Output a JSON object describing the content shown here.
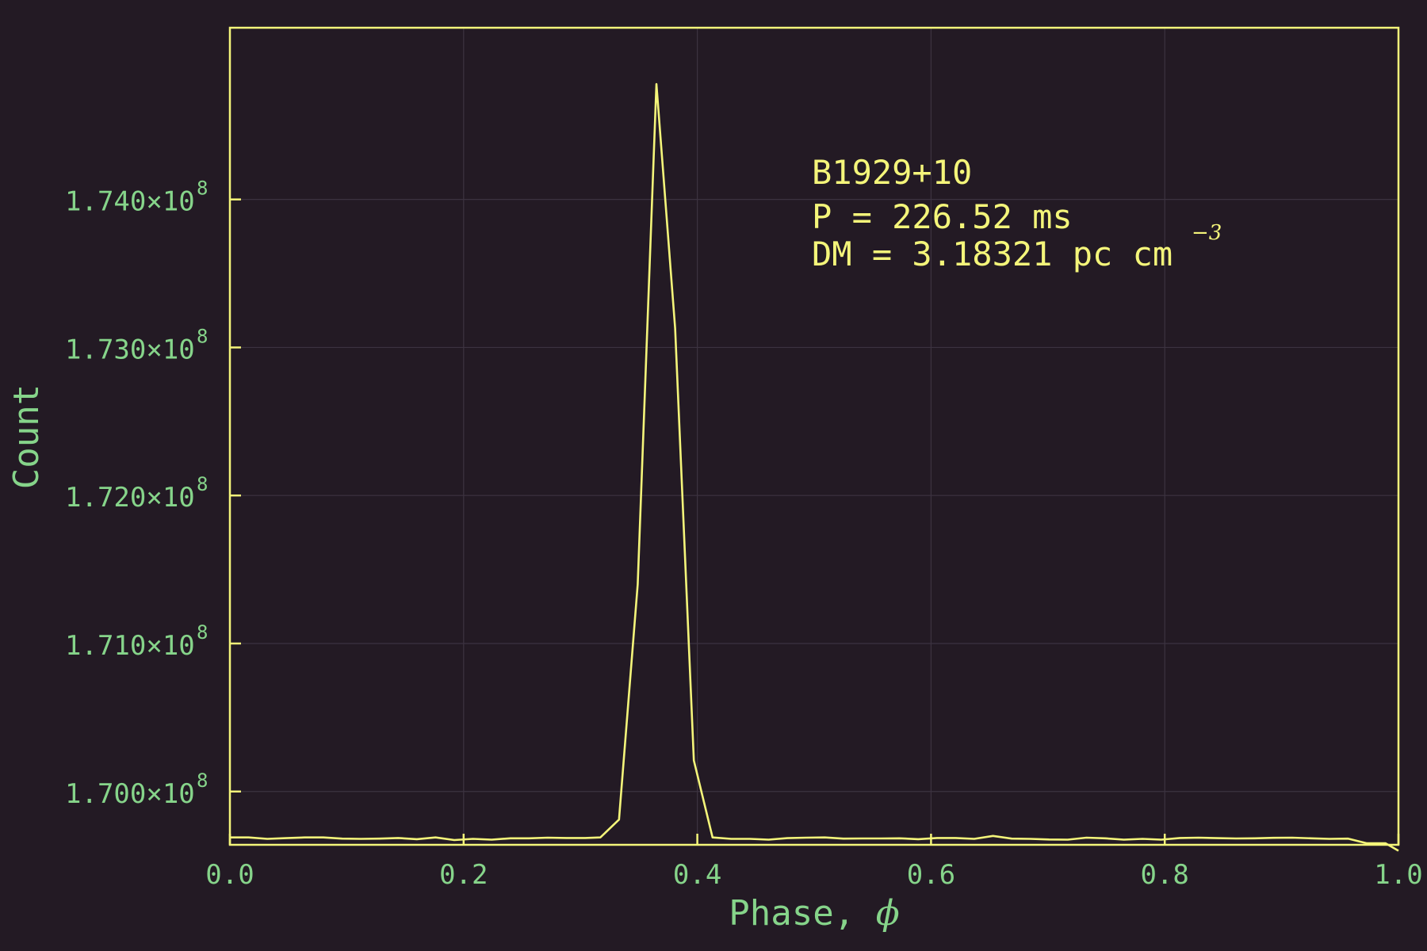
{
  "chart_data": {
    "type": "line",
    "xlabel": "Phase, ",
    "xlabel_symbol": "ϕ",
    "ylabel": "Count",
    "xlim": [
      0.0,
      1.0
    ],
    "ylim": [
      169.64,
      175.16
    ],
    "x_ticks": [
      "0.0",
      "0.2",
      "0.4",
      "0.6",
      "0.8",
      "1.0"
    ],
    "x_tick_values": [
      0.0,
      0.2,
      0.4,
      0.6,
      0.8,
      1.0
    ],
    "y_ticks": [
      {
        "mantissa": "1.700×10",
        "exp": "8",
        "value": 170.0
      },
      {
        "mantissa": "1.710×10",
        "exp": "8",
        "value": 171.0
      },
      {
        "mantissa": "1.720×10",
        "exp": "8",
        "value": 172.0
      },
      {
        "mantissa": "1.730×10",
        "exp": "8",
        "value": 173.0
      },
      {
        "mantissa": "1.740×10",
        "exp": "8",
        "value": 174.0
      }
    ],
    "y_unit_note": "y values in units of 10^6 counts",
    "grid": true,
    "annotation": {
      "line1": "B1929+10",
      "line2": "P = 226.52 ms",
      "line3": "DM = 3.18321 pc cm",
      "line3_sup": "−3"
    },
    "series": [
      {
        "color": "#f4f57a",
        "x": [
          0.0,
          0.016,
          0.032,
          0.048,
          0.064,
          0.08,
          0.096,
          0.112,
          0.128,
          0.144,
          0.16,
          0.176,
          0.192,
          0.208,
          0.224,
          0.24,
          0.256,
          0.272,
          0.288,
          0.304,
          0.317,
          0.333,
          0.349,
          0.365,
          0.381,
          0.397,
          0.413,
          0.429,
          0.445,
          0.461,
          0.477,
          0.493,
          0.509,
          0.525,
          0.541,
          0.557,
          0.573,
          0.589,
          0.605,
          0.621,
          0.637,
          0.653,
          0.669,
          0.685,
          0.701,
          0.717,
          0.733,
          0.749,
          0.765,
          0.781,
          0.797,
          0.813,
          0.829,
          0.845,
          0.861,
          0.877,
          0.893,
          0.909,
          0.925,
          0.941,
          0.957,
          0.973,
          0.989,
          1.0
        ],
        "y": [
          169.69,
          169.69,
          169.68,
          169.685,
          169.69,
          169.69,
          169.682,
          169.68,
          169.682,
          169.686,
          169.678,
          169.69,
          169.672,
          169.68,
          169.675,
          169.684,
          169.684,
          169.688,
          169.686,
          169.686,
          169.69,
          169.81,
          171.4,
          174.78,
          173.13,
          170.21,
          169.69,
          169.68,
          169.68,
          169.675,
          169.685,
          169.688,
          169.69,
          169.682,
          169.683,
          169.683,
          169.684,
          169.678,
          169.686,
          169.686,
          169.68,
          169.7,
          169.682,
          169.68,
          169.676,
          169.675,
          169.688,
          169.684,
          169.675,
          169.68,
          169.675,
          169.686,
          169.688,
          169.685,
          169.683,
          169.684,
          169.687,
          169.688,
          169.684,
          169.68,
          169.682,
          169.65,
          169.65,
          169.6
        ]
      }
    ]
  }
}
